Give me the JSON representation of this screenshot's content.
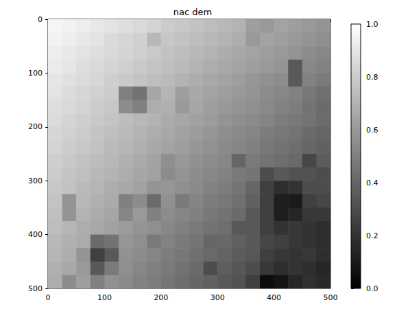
{
  "chart_data": {
    "type": "heatmap",
    "title": "nac dem",
    "x_edges": [
      0,
      25,
      50,
      75,
      100,
      125,
      150,
      175,
      200,
      225,
      250,
      275,
      300,
      325,
      350,
      375,
      400,
      425,
      450,
      475,
      500
    ],
    "y_edges": [
      0,
      25,
      50,
      75,
      100,
      125,
      150,
      175,
      200,
      225,
      250,
      275,
      300,
      325,
      350,
      375,
      400,
      425,
      450,
      475,
      500
    ],
    "values": [
      [
        0.96,
        0.95,
        0.93,
        0.91,
        0.89,
        0.87,
        0.85,
        0.83,
        0.8,
        0.78,
        0.76,
        0.74,
        0.72,
        0.7,
        0.62,
        0.6,
        0.64,
        0.62,
        0.6,
        0.58
      ],
      [
        0.95,
        0.93,
        0.91,
        0.89,
        0.86,
        0.84,
        0.82,
        0.72,
        0.78,
        0.76,
        0.74,
        0.72,
        0.7,
        0.68,
        0.6,
        0.64,
        0.62,
        0.6,
        0.58,
        0.56
      ],
      [
        0.93,
        0.91,
        0.89,
        0.87,
        0.85,
        0.83,
        0.81,
        0.79,
        0.76,
        0.74,
        0.72,
        0.7,
        0.68,
        0.66,
        0.64,
        0.62,
        0.6,
        0.58,
        0.55,
        0.53
      ],
      [
        0.92,
        0.9,
        0.87,
        0.85,
        0.83,
        0.81,
        0.79,
        0.77,
        0.75,
        0.73,
        0.7,
        0.68,
        0.66,
        0.64,
        0.62,
        0.6,
        0.58,
        0.35,
        0.53,
        0.51
      ],
      [
        0.9,
        0.88,
        0.86,
        0.84,
        0.81,
        0.79,
        0.77,
        0.75,
        0.73,
        0.7,
        0.68,
        0.66,
        0.64,
        0.62,
        0.59,
        0.57,
        0.55,
        0.35,
        0.51,
        0.48
      ],
      [
        0.89,
        0.86,
        0.84,
        0.82,
        0.8,
        0.5,
        0.45,
        0.65,
        0.71,
        0.62,
        0.66,
        0.64,
        0.62,
        0.6,
        0.58,
        0.55,
        0.53,
        0.51,
        0.47,
        0.44
      ],
      [
        0.87,
        0.85,
        0.83,
        0.8,
        0.78,
        0.55,
        0.5,
        0.68,
        0.69,
        0.6,
        0.65,
        0.62,
        0.6,
        0.58,
        0.56,
        0.54,
        0.51,
        0.49,
        0.45,
        0.42
      ],
      [
        0.86,
        0.83,
        0.81,
        0.79,
        0.77,
        0.74,
        0.72,
        0.7,
        0.67,
        0.65,
        0.63,
        0.61,
        0.58,
        0.56,
        0.54,
        0.52,
        0.49,
        0.47,
        0.45,
        0.42
      ],
      [
        0.84,
        0.82,
        0.8,
        0.77,
        0.75,
        0.73,
        0.7,
        0.68,
        0.66,
        0.63,
        0.61,
        0.59,
        0.56,
        0.54,
        0.52,
        0.49,
        0.47,
        0.45,
        0.42,
        0.4
      ],
      [
        0.83,
        0.8,
        0.78,
        0.76,
        0.73,
        0.71,
        0.69,
        0.66,
        0.64,
        0.62,
        0.59,
        0.57,
        0.54,
        0.52,
        0.5,
        0.47,
        0.45,
        0.43,
        0.4,
        0.38
      ],
      [
        0.81,
        0.79,
        0.76,
        0.74,
        0.72,
        0.69,
        0.67,
        0.64,
        0.56,
        0.6,
        0.57,
        0.55,
        0.53,
        0.4,
        0.48,
        0.45,
        0.43,
        0.41,
        0.28,
        0.36
      ],
      [
        0.8,
        0.77,
        0.75,
        0.72,
        0.7,
        0.68,
        0.65,
        0.63,
        0.55,
        0.58,
        0.55,
        0.53,
        0.51,
        0.48,
        0.46,
        0.3,
        0.35,
        0.32,
        0.32,
        0.3
      ],
      [
        0.78,
        0.76,
        0.73,
        0.71,
        0.68,
        0.66,
        0.63,
        0.58,
        0.59,
        0.56,
        0.54,
        0.51,
        0.49,
        0.46,
        0.4,
        0.25,
        0.18,
        0.2,
        0.3,
        0.3
      ],
      [
        0.77,
        0.58,
        0.72,
        0.69,
        0.67,
        0.5,
        0.55,
        0.42,
        0.57,
        0.48,
        0.52,
        0.49,
        0.47,
        0.44,
        0.38,
        0.25,
        0.12,
        0.1,
        0.25,
        0.28
      ],
      [
        0.75,
        0.58,
        0.7,
        0.67,
        0.65,
        0.52,
        0.6,
        0.5,
        0.55,
        0.52,
        0.5,
        0.47,
        0.45,
        0.42,
        0.35,
        0.25,
        0.12,
        0.15,
        0.22,
        0.22
      ],
      [
        0.74,
        0.71,
        0.68,
        0.66,
        0.63,
        0.61,
        0.58,
        0.56,
        0.53,
        0.5,
        0.48,
        0.45,
        0.43,
        0.35,
        0.35,
        0.25,
        0.2,
        0.22,
        0.2,
        0.18
      ],
      [
        0.72,
        0.69,
        0.67,
        0.42,
        0.45,
        0.59,
        0.56,
        0.48,
        0.51,
        0.48,
        0.46,
        0.4,
        0.41,
        0.38,
        0.35,
        0.28,
        0.25,
        0.22,
        0.2,
        0.18
      ],
      [
        0.71,
        0.68,
        0.58,
        0.25,
        0.35,
        0.57,
        0.55,
        0.52,
        0.49,
        0.47,
        0.44,
        0.41,
        0.39,
        0.36,
        0.34,
        0.25,
        0.22,
        0.2,
        0.22,
        0.18
      ],
      [
        0.69,
        0.66,
        0.6,
        0.35,
        0.48,
        0.56,
        0.53,
        0.5,
        0.48,
        0.45,
        0.42,
        0.3,
        0.37,
        0.34,
        0.3,
        0.22,
        0.18,
        0.2,
        0.18,
        0.15
      ],
      [
        0.68,
        0.55,
        0.62,
        0.5,
        0.57,
        0.54,
        0.51,
        0.49,
        0.46,
        0.43,
        0.4,
        0.38,
        0.35,
        0.32,
        0.25,
        0.05,
        0.08,
        0.15,
        0.19,
        0.16
      ]
    ],
    "xlim": [
      0,
      500
    ],
    "xticks": [
      0,
      100,
      200,
      300,
      400,
      500
    ],
    "ylim": [
      500,
      0
    ],
    "yticks": [
      0,
      100,
      200,
      300,
      400,
      500
    ],
    "colorbar": {
      "range": [
        0,
        1
      ],
      "ticks": [
        {
          "value": 0,
          "label": "0.0"
        },
        {
          "value": 0.2,
          "label": "0.2"
        },
        {
          "value": 0.4,
          "label": "0.4"
        },
        {
          "value": 0.6,
          "label": "0.6"
        },
        {
          "value": 0.8,
          "label": "0.8"
        },
        {
          "value": 1,
          "label": "1.0"
        }
      ]
    }
  }
}
